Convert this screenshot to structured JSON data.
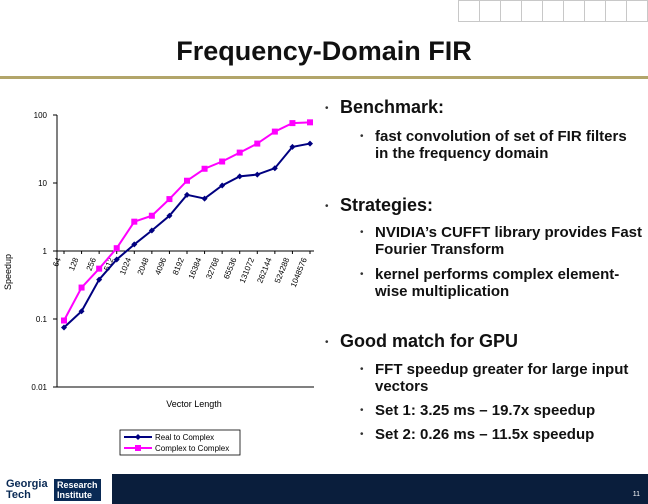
{
  "slide": {
    "title": "Frequency-Domain FIR",
    "page_number": "11"
  },
  "bullets": [
    {
      "text": "Benchmark:",
      "subs": [
        "fast convolution of set of FIR filters in the frequency domain"
      ]
    },
    {
      "text": "Strategies:",
      "subs": [
        "NVIDIA’s CUFFT library provides Fast Fourier Transform",
        "kernel performs complex element-wise multiplication"
      ]
    },
    {
      "text": "Good match for GPU",
      "subs": [
        "FFT speedup greater for large input vectors",
        "Set 1: 3.25 ms – 19.7x speedup",
        "Set 2: 0.26 ms – 11.5x speedup"
      ]
    }
  ],
  "logo": {
    "line1": "Georgia",
    "line2": "Tech",
    "research": "Research",
    "institute": "Institute"
  },
  "chart_data": {
    "type": "line",
    "xlabel": "Vector Length",
    "ylabel": "Speedup",
    "yscale": "log",
    "ylim": [
      0.01,
      100
    ],
    "yticks": [
      "0.01",
      "0.1",
      "1",
      "10",
      "100"
    ],
    "categories": [
      "64",
      "128",
      "256",
      "512",
      "1024",
      "2048",
      "4096",
      "8192",
      "16384",
      "32768",
      "65536",
      "131072",
      "262144",
      "524288",
      "1048576"
    ],
    "series": [
      {
        "name": "Real to Complex",
        "color": "#000080",
        "values": [
          0.075,
          0.13,
          0.38,
          0.75,
          1.25,
          2.0,
          3.3,
          6.7,
          5.9,
          9.2,
          12.5,
          13.3,
          16.5,
          34,
          38
        ]
      },
      {
        "name": "Complex to Complex",
        "color": "#ff00ff",
        "values": [
          0.095,
          0.29,
          0.55,
          1.1,
          2.7,
          3.3,
          5.8,
          10.8,
          16.2,
          20.7,
          28,
          38,
          57,
          76,
          78
        ]
      }
    ],
    "legend": "bottom-center"
  }
}
